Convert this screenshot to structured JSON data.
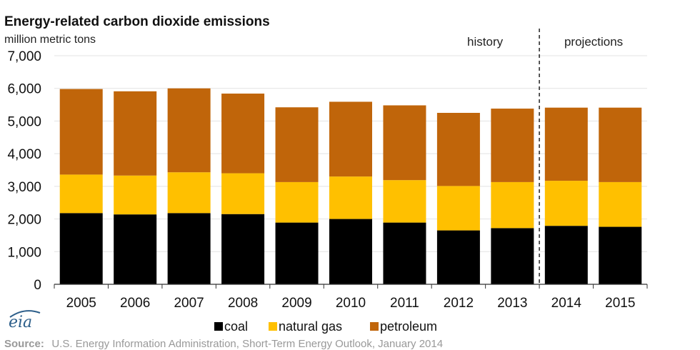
{
  "chart_data": {
    "type": "bar",
    "stacked": true,
    "title": "Energy-related carbon dioxide emissions",
    "units_label": "million metric tons",
    "categories": [
      "2005",
      "2006",
      "2007",
      "2008",
      "2009",
      "2010",
      "2011",
      "2012",
      "2013",
      "2014",
      "2015"
    ],
    "series": [
      {
        "name": "coal",
        "color": "#000000",
        "values": [
          2180,
          2140,
          2180,
          2150,
          1890,
          2000,
          1890,
          1650,
          1720,
          1790,
          1760
        ]
      },
      {
        "name": "natural gas",
        "color": "#FFC000",
        "values": [
          1180,
          1190,
          1250,
          1250,
          1240,
          1300,
          1300,
          1360,
          1410,
          1380,
          1370
        ]
      },
      {
        "name": "petroleum",
        "color": "#C0650A",
        "values": [
          2620,
          2580,
          2570,
          2440,
          2290,
          2290,
          2290,
          2240,
          2250,
          2240,
          2280
        ]
      }
    ],
    "ylim": [
      0,
      7000
    ],
    "yticks": [
      "0",
      "1,000",
      "2,000",
      "3,000",
      "4,000",
      "5,000",
      "6,000",
      "7,000"
    ],
    "ytick_values": [
      0,
      1000,
      2000,
      3000,
      4000,
      5000,
      6000,
      7000
    ],
    "grid": true,
    "regions": [
      {
        "label": "history",
        "from": "2005",
        "to": "2013"
      },
      {
        "label": "projections",
        "from": "2014",
        "to": "2015"
      }
    ],
    "legend_position": "bottom"
  },
  "logo_text": "eia",
  "source": {
    "label": "Source:",
    "text": "U.S. Energy Information Administration, Short-Term Energy Outlook, January 2014"
  }
}
